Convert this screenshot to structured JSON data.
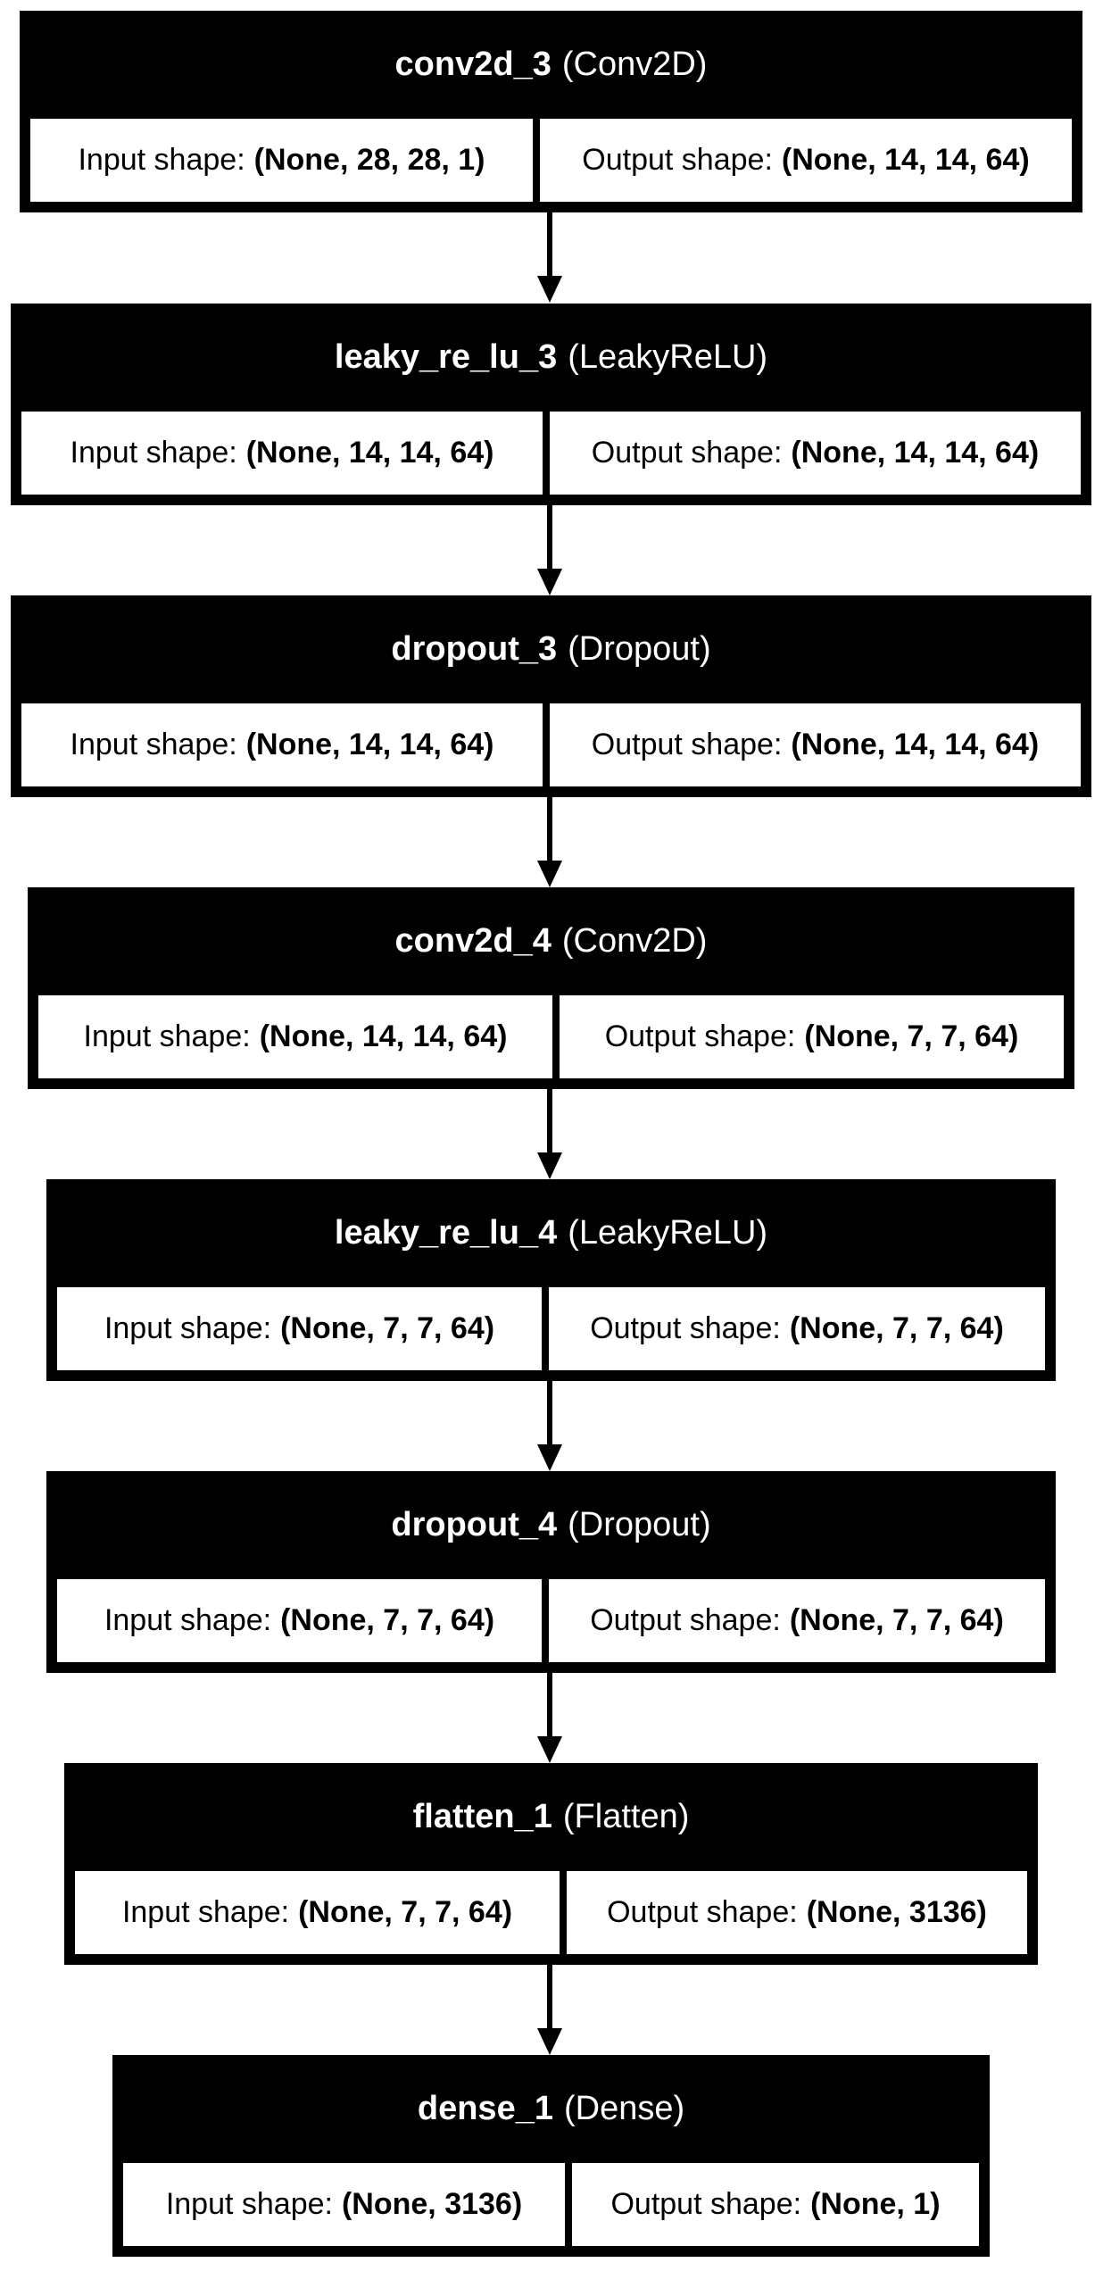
{
  "layers": [
    {
      "name": "conv2d_3",
      "type": "(Conv2D)",
      "input_label": "Input shape:",
      "input_shape": "(None, 28, 28, 1)",
      "output_label": "Output shape:",
      "output_shape": "(None, 14, 14, 64)"
    },
    {
      "name": "leaky_re_lu_3",
      "type": "(LeakyReLU)",
      "input_label": "Input shape:",
      "input_shape": "(None, 14, 14, 64)",
      "output_label": "Output shape:",
      "output_shape": "(None, 14, 14, 64)"
    },
    {
      "name": "dropout_3",
      "type": "(Dropout)",
      "input_label": "Input shape:",
      "input_shape": "(None, 14, 14, 64)",
      "output_label": "Output shape:",
      "output_shape": "(None, 14, 14, 64)"
    },
    {
      "name": "conv2d_4",
      "type": "(Conv2D)",
      "input_label": "Input shape:",
      "input_shape": "(None, 14, 14, 64)",
      "output_label": "Output shape:",
      "output_shape": "(None, 7, 7, 64)"
    },
    {
      "name": "leaky_re_lu_4",
      "type": "(LeakyReLU)",
      "input_label": "Input shape:",
      "input_shape": "(None, 7, 7, 64)",
      "output_label": "Output shape:",
      "output_shape": "(None, 7, 7, 64)"
    },
    {
      "name": "dropout_4",
      "type": "(Dropout)",
      "input_label": "Input shape:",
      "input_shape": "(None, 7, 7, 64)",
      "output_label": "Output shape:",
      "output_shape": "(None, 7, 7, 64)"
    },
    {
      "name": "flatten_1",
      "type": "(Flatten)",
      "input_label": "Input shape:",
      "input_shape": "(None, 7, 7, 64)",
      "output_label": "Output shape:",
      "output_shape": "(None, 3136)"
    },
    {
      "name": "dense_1",
      "type": "(Dense)",
      "input_label": "Input shape:",
      "input_shape": "(None, 3136)",
      "output_label": "Output shape:",
      "output_shape": "(None, 1)"
    }
  ]
}
